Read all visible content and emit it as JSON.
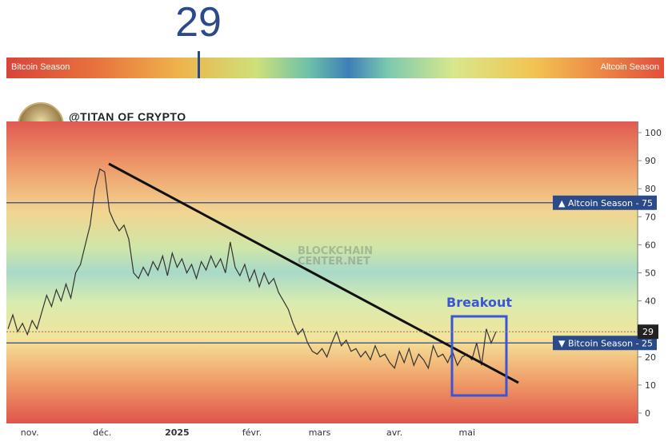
{
  "header": {
    "value": "29",
    "gauge_left_label": "Bitcoin Season",
    "gauge_right_label": "Altcoin Season",
    "gauge_position": 29
  },
  "author": "@TITAN OF CRYPTO",
  "watermark": [
    "BLOCKCHAIN",
    "CENTER.NET"
  ],
  "chart_data": {
    "type": "line",
    "ylim": [
      0,
      100
    ],
    "y_ticks": [
      "0",
      "10",
      "20",
      "30",
      "40",
      "50",
      "60",
      "70",
      "80",
      "90",
      "100"
    ],
    "x_ticks": [
      "nov.",
      "déc.",
      "2025",
      "févr.",
      "mars",
      "avr.",
      "mai"
    ],
    "reference_lines": [
      {
        "label": "▲ Altcoin Season",
        "value": 75
      },
      {
        "label": "▼ Bitcoin Season",
        "value": 25
      }
    ],
    "current_value": 29,
    "series": [
      {
        "x": [
          "2024-10-23",
          "2024-10-25",
          "2024-10-27",
          "2024-10-29",
          "2024-10-31",
          "2024-11-02",
          "2024-11-04",
          "2024-11-06",
          "2024-11-08",
          "2024-11-10",
          "2024-11-12",
          "2024-11-14",
          "2024-11-16",
          "2024-11-18",
          "2024-11-20",
          "2024-11-22",
          "2024-11-24",
          "2024-11-26",
          "2024-11-28",
          "2024-11-30",
          "2024-12-02",
          "2024-12-04",
          "2024-12-06",
          "2024-12-08",
          "2024-12-10",
          "2024-12-12",
          "2024-12-14",
          "2024-12-16",
          "2024-12-18",
          "2024-12-20",
          "2024-12-22",
          "2024-12-24",
          "2024-12-26",
          "2024-12-28",
          "2024-12-30",
          "2025-01-01",
          "2025-01-03",
          "2025-01-05",
          "2025-01-07",
          "2025-01-09",
          "2025-01-11",
          "2025-01-13",
          "2025-01-15",
          "2025-01-17",
          "2025-01-19",
          "2025-01-21",
          "2025-01-23",
          "2025-01-25",
          "2025-01-27",
          "2025-01-29",
          "2025-01-31",
          "2025-02-02",
          "2025-02-04",
          "2025-02-06",
          "2025-02-08",
          "2025-02-10",
          "2025-02-12",
          "2025-02-14",
          "2025-02-16",
          "2025-02-18",
          "2025-02-20",
          "2025-02-22",
          "2025-02-24",
          "2025-02-26",
          "2025-02-28",
          "2025-03-02",
          "2025-03-04",
          "2025-03-06",
          "2025-03-08",
          "2025-03-10",
          "2025-03-12",
          "2025-03-14",
          "2025-03-16",
          "2025-03-18",
          "2025-03-20",
          "2025-03-22",
          "2025-03-24",
          "2025-03-26",
          "2025-03-28",
          "2025-03-30",
          "2025-04-01",
          "2025-04-03",
          "2025-04-05",
          "2025-04-07",
          "2025-04-09",
          "2025-04-11",
          "2025-04-13",
          "2025-04-15",
          "2025-04-17",
          "2025-04-19",
          "2025-04-21",
          "2025-04-23",
          "2025-04-25",
          "2025-04-27",
          "2025-04-29",
          "2025-05-01",
          "2025-05-03",
          "2025-05-05",
          "2025-05-07",
          "2025-05-09",
          "2025-05-11",
          "2025-05-13"
        ],
        "values": [
          30,
          35,
          29,
          32,
          28,
          33,
          30,
          36,
          42,
          38,
          44,
          40,
          46,
          41,
          50,
          53,
          60,
          67,
          80,
          87,
          86,
          72,
          68,
          65,
          67,
          62,
          50,
          48,
          52,
          49,
          54,
          51,
          56,
          49,
          57,
          52,
          55,
          50,
          53,
          48,
          54,
          51,
          56,
          52,
          55,
          50,
          61,
          52,
          49,
          53,
          47,
          51,
          45,
          50,
          46,
          48,
          43,
          40,
          37,
          32,
          28,
          30,
          25,
          22,
          21,
          23,
          20,
          25,
          29,
          24,
          26,
          22,
          23,
          20,
          22,
          19,
          24,
          20,
          21,
          18,
          16,
          22,
          18,
          23,
          17,
          21,
          19,
          16,
          24,
          20,
          21,
          18,
          22,
          17,
          20,
          21,
          19,
          25,
          17,
          30,
          25,
          29
        ]
      }
    ]
  },
  "annotations": {
    "breakout": "Breakout"
  },
  "colors": {
    "line": "#333333",
    "trend": "#111111",
    "box": "#3a55d6",
    "label_bg": "#2b4a8a"
  }
}
